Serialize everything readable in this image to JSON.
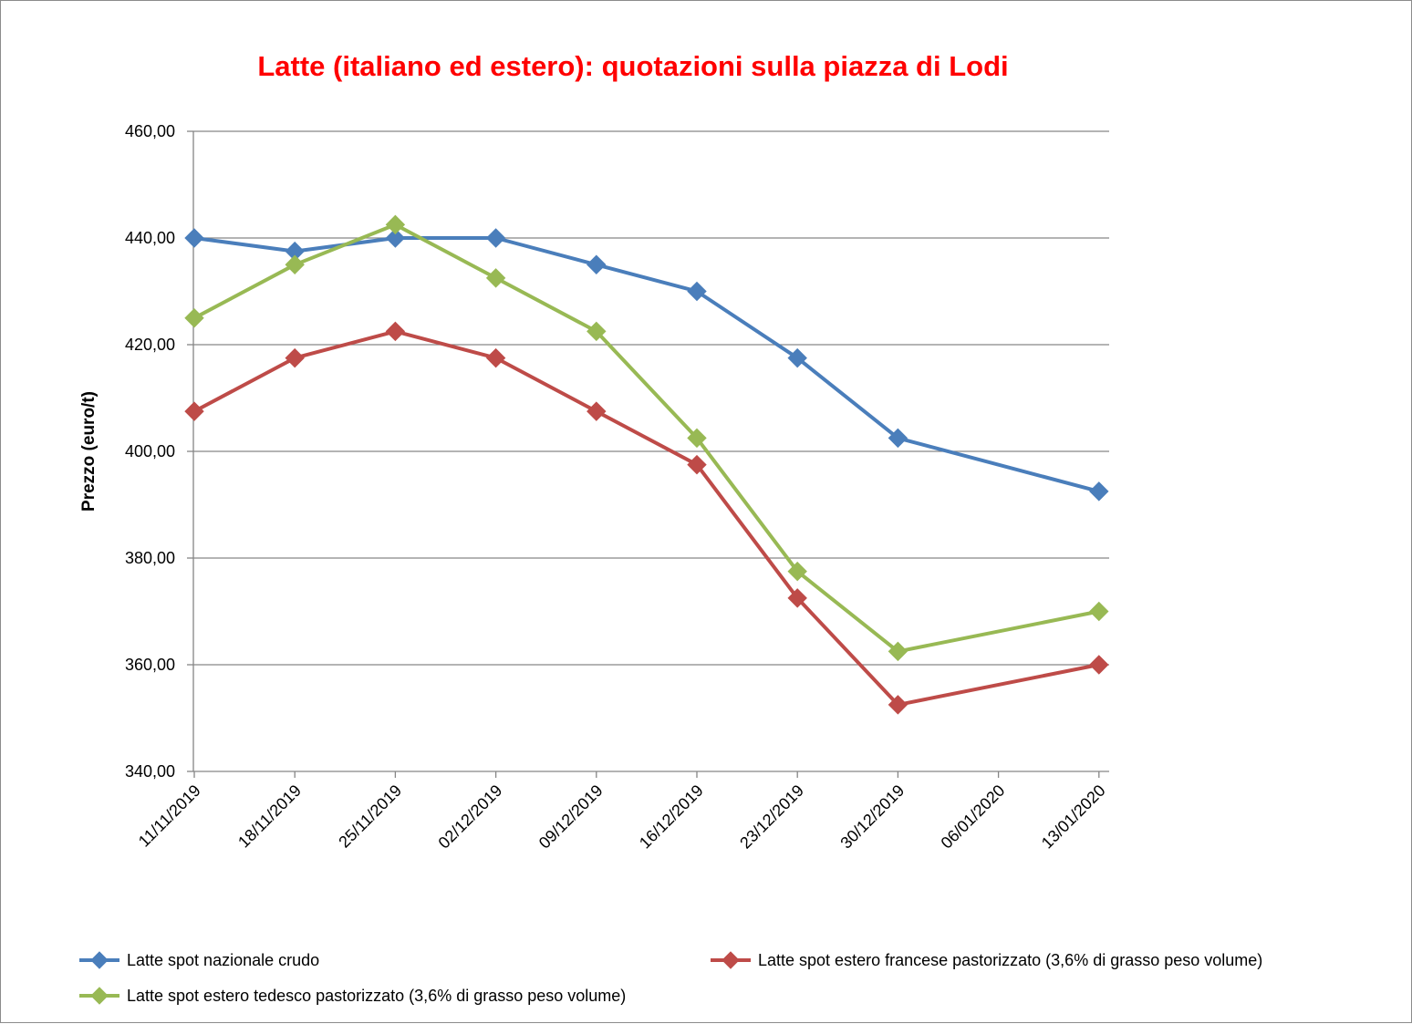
{
  "chart_data": {
    "type": "line",
    "title": "Latte (italiano ed estero): quotazioni sulla piazza di Lodi",
    "xlabel": "",
    "ylabel": "Prezzo (euro/t)",
    "ylim": [
      340,
      460
    ],
    "yticks": [
      "340,00",
      "360,00",
      "380,00",
      "400,00",
      "420,00",
      "440,00",
      "460,00"
    ],
    "categories": [
      "11/11/2019",
      "18/11/2019",
      "25/11/2019",
      "02/12/2019",
      "09/12/2019",
      "16/12/2019",
      "23/12/2019",
      "30/12/2019",
      "06/01/2020",
      "13/01/2020"
    ],
    "grid": true,
    "legend_position": "bottom",
    "series": [
      {
        "name": "Latte spot nazionale crudo",
        "color": "#4a7ebb",
        "x": [
          "11/11/2019",
          "18/11/2019",
          "25/11/2019",
          "02/12/2019",
          "09/12/2019",
          "16/12/2019",
          "23/12/2019",
          "30/12/2019",
          "13/01/2020"
        ],
        "values": [
          440,
          437.5,
          440,
          440,
          435,
          430,
          417.5,
          402.5,
          392.5
        ]
      },
      {
        "name": "Latte spot estero francese pastorizzato (3,6% di grasso peso volume)",
        "color": "#be4b48",
        "x": [
          "11/11/2019",
          "18/11/2019",
          "25/11/2019",
          "02/12/2019",
          "09/12/2019",
          "16/12/2019",
          "23/12/2019",
          "30/12/2019",
          "13/01/2020"
        ],
        "values": [
          407.5,
          417.5,
          422.5,
          417.5,
          407.5,
          397.5,
          372.5,
          352.5,
          360
        ]
      },
      {
        "name": "Latte spot estero tedesco pastorizzato (3,6% di grasso peso volume)",
        "color": "#98b954",
        "x": [
          "11/11/2019",
          "18/11/2019",
          "25/11/2019",
          "02/12/2019",
          "09/12/2019",
          "16/12/2019",
          "23/12/2019",
          "30/12/2019",
          "13/01/2020"
        ],
        "values": [
          425,
          435,
          442.5,
          432.5,
          422.5,
          402.5,
          377.5,
          362.5,
          370
        ]
      }
    ]
  }
}
